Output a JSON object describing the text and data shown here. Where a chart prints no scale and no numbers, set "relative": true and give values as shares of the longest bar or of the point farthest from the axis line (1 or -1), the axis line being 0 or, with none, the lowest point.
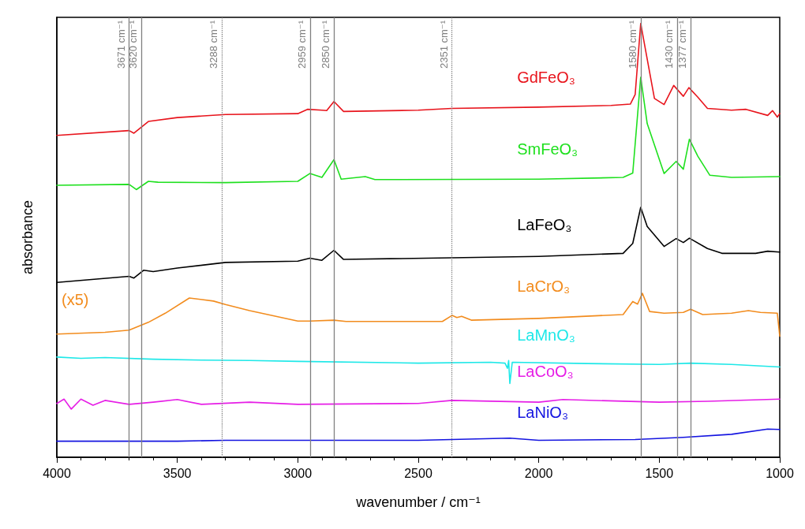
{
  "chart_data": {
    "type": "line",
    "relative": true,
    "xlabel": "wavenumber / cm⁻¹",
    "ylabel": "absorbance",
    "xlim": [
      4000,
      1000
    ],
    "xticks": [
      4000,
      3500,
      3000,
      2500,
      2000,
      1500,
      1000
    ],
    "grid": false,
    "legend": false,
    "marker": "none",
    "line_style": "solid",
    "series": [
      {
        "name": "GdFeO₃",
        "color": "#e8141c",
        "x": [
          4000,
          3700,
          3680,
          3620,
          3500,
          3300,
          3000,
          2960,
          2900,
          2880,
          2850,
          2810,
          2500,
          2360,
          2000,
          1700,
          1620,
          1600,
          1577,
          1555,
          1520,
          1480,
          1440,
          1400,
          1377,
          1340,
          1300,
          1200,
          1140,
          1050,
          1030,
          1010,
          1000
        ],
        "values": [
          0.742,
          0.753,
          0.747,
          0.774,
          0.783,
          0.79,
          0.792,
          0.802,
          0.8,
          0.799,
          0.82,
          0.797,
          0.8,
          0.804,
          0.807,
          0.811,
          0.814,
          0.836,
          1.0,
          0.933,
          0.827,
          0.813,
          0.857,
          0.832,
          0.852,
          0.83,
          0.804,
          0.8,
          0.802,
          0.788,
          0.799,
          0.784,
          0.792
        ]
      },
      {
        "name": "SmFeO₃",
        "color": "#1ee01e",
        "x": [
          4000,
          3700,
          3670,
          3620,
          3580,
          3300,
          3000,
          2950,
          2900,
          2850,
          2820,
          2720,
          2680,
          2000,
          1650,
          1610,
          1577,
          1550,
          1480,
          1430,
          1400,
          1375,
          1340,
          1290,
          1200,
          1000
        ],
        "values": [
          0.627,
          0.629,
          0.617,
          0.636,
          0.634,
          0.633,
          0.636,
          0.654,
          0.645,
          0.686,
          0.641,
          0.647,
          0.64,
          0.641,
          0.645,
          0.655,
          0.876,
          0.769,
          0.654,
          0.682,
          0.664,
          0.733,
          0.694,
          0.65,
          0.645,
          0.647
        ]
      },
      {
        "name": "LaFeO₃",
        "color": "#000000",
        "x": [
          4000,
          3700,
          3680,
          3640,
          3600,
          3500,
          3300,
          3000,
          2950,
          2900,
          2850,
          2810,
          2000,
          1650,
          1610,
          1577,
          1550,
          1480,
          1430,
          1400,
          1375,
          1300,
          1240,
          1100,
          1050,
          1000
        ],
        "values": [
          0.403,
          0.417,
          0.413,
          0.431,
          0.428,
          0.436,
          0.449,
          0.452,
          0.459,
          0.454,
          0.477,
          0.456,
          0.463,
          0.47,
          0.493,
          0.576,
          0.532,
          0.486,
          0.504,
          0.495,
          0.505,
          0.481,
          0.47,
          0.47,
          0.475,
          0.473
        ]
      },
      {
        "name": "LaCrO₃",
        "color": "#f28c1e",
        "x": [
          4000,
          3800,
          3700,
          3620,
          3550,
          3450,
          3350,
          3300,
          3200,
          3000,
          2950,
          2850,
          2800,
          2400,
          2360,
          2340,
          2320,
          2280,
          2000,
          1650,
          1610,
          1590,
          1570,
          1540,
          1480,
          1400,
          1370,
          1320,
          1200,
          1130,
          1080,
          1010,
          1000
        ],
        "values": [
          0.284,
          0.288,
          0.293,
          0.311,
          0.332,
          0.367,
          0.36,
          0.352,
          0.338,
          0.314,
          0.314,
          0.316,
          0.313,
          0.313,
          0.327,
          0.322,
          0.325,
          0.316,
          0.32,
          0.329,
          0.359,
          0.353,
          0.378,
          0.336,
          0.332,
          0.334,
          0.341,
          0.329,
          0.332,
          0.338,
          0.334,
          0.332,
          0.279
        ]
      },
      {
        "name": "LaMnO₃",
        "color": "#1ee8e8",
        "x": [
          4000,
          3900,
          3800,
          3600,
          3400,
          3200,
          3000,
          2500,
          2200,
          2140,
          2130,
          2125,
          2120,
          2110,
          1800,
          1500,
          1370,
          1200,
          1000
        ],
        "values": [
          0.231,
          0.228,
          0.23,
          0.226,
          0.224,
          0.223,
          0.221,
          0.217,
          0.219,
          0.217,
          0.205,
          0.223,
          0.17,
          0.219,
          0.216,
          0.214,
          0.217,
          0.214,
          0.208
        ]
      },
      {
        "name": "LaCoO₃",
        "color": "#e61ee6",
        "x": [
          4000,
          3970,
          3940,
          3900,
          3850,
          3800,
          3700,
          3600,
          3500,
          3400,
          3200,
          3000,
          2500,
          2360,
          2000,
          1900,
          1500,
          1300,
          1000
        ],
        "values": [
          0.124,
          0.134,
          0.111,
          0.134,
          0.12,
          0.131,
          0.122,
          0.127,
          0.133,
          0.122,
          0.127,
          0.122,
          0.124,
          0.131,
          0.127,
          0.133,
          0.127,
          0.129,
          0.134
        ]
      },
      {
        "name": "LaNiO₃",
        "color": "#1414e0",
        "x": [
          4000,
          3500,
          3300,
          2500,
          2120,
          2000,
          1600,
          1400,
          1200,
          1050,
          1000
        ],
        "values": [
          0.037,
          0.037,
          0.039,
          0.039,
          0.044,
          0.039,
          0.041,
          0.046,
          0.053,
          0.065,
          0.064
        ]
      }
    ],
    "ref_lines": [
      {
        "axis": "x",
        "value": 3700,
        "label": "3671 cm⁻¹",
        "color": "#808080",
        "line_style": "solid"
      },
      {
        "axis": "x",
        "value": 3649,
        "label": "3620 cm⁻¹",
        "color": "#808080",
        "line_style": "solid"
      },
      {
        "axis": "x",
        "value": 3314,
        "label": "3288 cm⁻¹",
        "color": "#808080",
        "line_style": "dotted"
      },
      {
        "axis": "x",
        "value": 2949,
        "label": "2959 cm⁻¹",
        "color": "#808080",
        "line_style": "solid"
      },
      {
        "axis": "x",
        "value": 2849,
        "label": "2850 cm⁻¹",
        "color": "#808080",
        "line_style": "solid"
      },
      {
        "axis": "x",
        "value": 2360,
        "label": "2351 cm⁻¹",
        "color": "#808080",
        "line_style": "dotted"
      },
      {
        "axis": "x",
        "value": 1577,
        "label": "1580 cm⁻¹",
        "color": "#808080",
        "line_style": "solid"
      },
      {
        "axis": "x",
        "value": 1425,
        "label": "1430 cm⁻¹",
        "color": "#808080",
        "line_style": "solid"
      },
      {
        "axis": "x",
        "value": 1370,
        "label": "1377 cm⁻¹",
        "color": "#808080",
        "line_style": "solid"
      }
    ],
    "annotations": [
      "(x5)"
    ]
  }
}
